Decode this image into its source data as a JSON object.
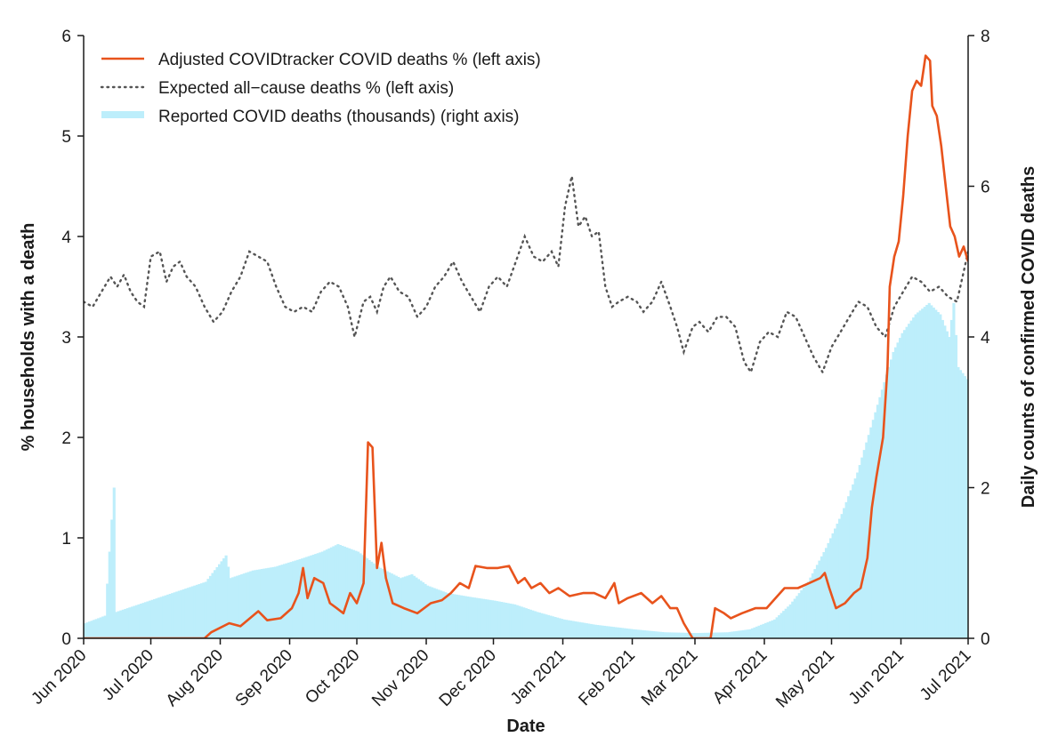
{
  "chart_data": {
    "type": "line",
    "xlabel": "Date",
    "ylabel_left": "% households with a death",
    "ylabel_right": "Daily counts of confirmed COVID deaths",
    "x_range": [
      "2020-06-01",
      "2021-07-01"
    ],
    "x_ticks": [
      "Jun 2020",
      "Jul 2020",
      "Aug 2020",
      "Sep 2020",
      "Oct 2020",
      "Nov 2020",
      "Dec 2020",
      "Jan 2021",
      "Feb 2021",
      "Mar 2021",
      "Apr 2021",
      "May 2021",
      "Jun 2021",
      "Jul 2021"
    ],
    "y_left": {
      "range": [
        0,
        6
      ],
      "ticks": [
        "0",
        "1",
        "2",
        "3",
        "4",
        "5",
        "6"
      ]
    },
    "y_right": {
      "range": [
        0,
        8
      ],
      "ticks": [
        "0",
        "2",
        "4",
        "6",
        "8"
      ]
    },
    "grid": false,
    "legend_position": "top-left",
    "legend": [
      "Adjusted COVIDtracker COVID deaths % (left axis)",
      "Expected all−cause deaths % (left axis)",
      "Reported COVID deaths (thousands) (right axis)"
    ],
    "colors": {
      "adjusted": "#e8531c",
      "expected": "#555555",
      "reported": "#bdeefb",
      "axis": "#1a1a1a"
    },
    "series": [
      {
        "name": "Adjusted COVIDtracker COVID deaths % (left axis)",
        "axis": "left",
        "style": "solid",
        "points": [
          [
            "2020-06-01",
            0.0
          ],
          [
            "2020-07-15",
            0.0
          ],
          [
            "2020-07-25",
            0.0
          ],
          [
            "2020-07-28",
            0.06
          ],
          [
            "2020-08-05",
            0.15
          ],
          [
            "2020-08-10",
            0.12
          ],
          [
            "2020-08-18",
            0.27
          ],
          [
            "2020-08-22",
            0.18
          ],
          [
            "2020-08-28",
            0.2
          ],
          [
            "2020-09-02",
            0.3
          ],
          [
            "2020-09-05",
            0.45
          ],
          [
            "2020-09-07",
            0.7
          ],
          [
            "2020-09-09",
            0.4
          ],
          [
            "2020-09-12",
            0.6
          ],
          [
            "2020-09-16",
            0.55
          ],
          [
            "2020-09-19",
            0.35
          ],
          [
            "2020-09-22",
            0.3
          ],
          [
            "2020-09-25",
            0.25
          ],
          [
            "2020-09-28",
            0.45
          ],
          [
            "2020-10-01",
            0.35
          ],
          [
            "2020-10-04",
            0.55
          ],
          [
            "2020-10-06",
            1.95
          ],
          [
            "2020-10-08",
            1.9
          ],
          [
            "2020-10-10",
            0.7
          ],
          [
            "2020-10-12",
            0.95
          ],
          [
            "2020-10-14",
            0.6
          ],
          [
            "2020-10-17",
            0.35
          ],
          [
            "2020-10-22",
            0.3
          ],
          [
            "2020-10-28",
            0.25
          ],
          [
            "2020-11-03",
            0.35
          ],
          [
            "2020-11-08",
            0.38
          ],
          [
            "2020-11-12",
            0.45
          ],
          [
            "2020-11-16",
            0.55
          ],
          [
            "2020-11-20",
            0.5
          ],
          [
            "2020-11-23",
            0.72
          ],
          [
            "2020-11-28",
            0.7
          ],
          [
            "2020-12-03",
            0.7
          ],
          [
            "2020-12-08",
            0.72
          ],
          [
            "2020-12-12",
            0.55
          ],
          [
            "2020-12-15",
            0.6
          ],
          [
            "2020-12-18",
            0.5
          ],
          [
            "2020-12-22",
            0.55
          ],
          [
            "2020-12-26",
            0.45
          ],
          [
            "2020-12-30",
            0.5
          ],
          [
            "2021-01-04",
            0.42
          ],
          [
            "2021-01-10",
            0.45
          ],
          [
            "2021-01-15",
            0.45
          ],
          [
            "2021-01-20",
            0.4
          ],
          [
            "2021-01-24",
            0.55
          ],
          [
            "2021-01-26",
            0.35
          ],
          [
            "2021-01-30",
            0.4
          ],
          [
            "2021-02-05",
            0.45
          ],
          [
            "2021-02-10",
            0.35
          ],
          [
            "2021-02-14",
            0.42
          ],
          [
            "2021-02-18",
            0.3
          ],
          [
            "2021-02-21",
            0.3
          ],
          [
            "2021-02-24",
            0.15
          ],
          [
            "2021-02-28",
            0.0
          ],
          [
            "2021-03-02",
            0.0
          ],
          [
            "2021-03-08",
            0.0
          ],
          [
            "2021-03-10",
            0.3
          ],
          [
            "2021-03-14",
            0.25
          ],
          [
            "2021-03-17",
            0.2
          ],
          [
            "2021-03-22",
            0.25
          ],
          [
            "2021-03-28",
            0.3
          ],
          [
            "2021-04-02",
            0.3
          ],
          [
            "2021-04-06",
            0.4
          ],
          [
            "2021-04-10",
            0.5
          ],
          [
            "2021-04-16",
            0.5
          ],
          [
            "2021-04-21",
            0.55
          ],
          [
            "2021-04-26",
            0.6
          ],
          [
            "2021-04-28",
            0.65
          ],
          [
            "2021-04-30",
            0.5
          ],
          [
            "2021-05-03",
            0.3
          ],
          [
            "2021-05-07",
            0.35
          ],
          [
            "2021-05-11",
            0.45
          ],
          [
            "2021-05-14",
            0.5
          ],
          [
            "2021-05-17",
            0.8
          ],
          [
            "2021-05-19",
            1.3
          ],
          [
            "2021-05-21",
            1.6
          ],
          [
            "2021-05-24",
            2.0
          ],
          [
            "2021-05-26",
            2.7
          ],
          [
            "2021-05-27",
            3.5
          ],
          [
            "2021-05-29",
            3.8
          ],
          [
            "2021-05-31",
            3.95
          ],
          [
            "2021-06-02",
            4.4
          ],
          [
            "2021-06-04",
            5.0
          ],
          [
            "2021-06-06",
            5.45
          ],
          [
            "2021-06-08",
            5.55
          ],
          [
            "2021-06-10",
            5.5
          ],
          [
            "2021-06-12",
            5.8
          ],
          [
            "2021-06-14",
            5.75
          ],
          [
            "2021-06-15",
            5.3
          ],
          [
            "2021-06-17",
            5.2
          ],
          [
            "2021-06-19",
            4.9
          ],
          [
            "2021-06-21",
            4.5
          ],
          [
            "2021-06-23",
            4.1
          ],
          [
            "2021-06-25",
            4.0
          ],
          [
            "2021-06-27",
            3.8
          ],
          [
            "2021-06-29",
            3.9
          ],
          [
            "2021-07-01",
            3.75
          ]
        ]
      },
      {
        "name": "Expected all−cause deaths % (left axis)",
        "axis": "left",
        "style": "dotted",
        "points": [
          [
            "2020-06-01",
            3.35
          ],
          [
            "2020-06-05",
            3.3
          ],
          [
            "2020-06-09",
            3.45
          ],
          [
            "2020-06-13",
            3.6
          ],
          [
            "2020-06-16",
            3.5
          ],
          [
            "2020-06-19",
            3.62
          ],
          [
            "2020-06-22",
            3.45
          ],
          [
            "2020-06-25",
            3.35
          ],
          [
            "2020-06-28",
            3.3
          ],
          [
            "2020-07-01",
            3.8
          ],
          [
            "2020-07-05",
            3.85
          ],
          [
            "2020-07-08",
            3.55
          ],
          [
            "2020-07-11",
            3.7
          ],
          [
            "2020-07-14",
            3.75
          ],
          [
            "2020-07-17",
            3.6
          ],
          [
            "2020-07-21",
            3.5
          ],
          [
            "2020-07-25",
            3.3
          ],
          [
            "2020-07-29",
            3.15
          ],
          [
            "2020-08-02",
            3.25
          ],
          [
            "2020-08-06",
            3.45
          ],
          [
            "2020-08-10",
            3.6
          ],
          [
            "2020-08-14",
            3.85
          ],
          [
            "2020-08-18",
            3.8
          ],
          [
            "2020-08-22",
            3.75
          ],
          [
            "2020-08-26",
            3.5
          ],
          [
            "2020-08-30",
            3.3
          ],
          [
            "2020-09-03",
            3.25
          ],
          [
            "2020-09-07",
            3.3
          ],
          [
            "2020-09-11",
            3.25
          ],
          [
            "2020-09-15",
            3.45
          ],
          [
            "2020-09-19",
            3.55
          ],
          [
            "2020-09-23",
            3.5
          ],
          [
            "2020-09-27",
            3.3
          ],
          [
            "2020-09-30",
            3.0
          ],
          [
            "2020-10-04",
            3.35
          ],
          [
            "2020-10-07",
            3.4
          ],
          [
            "2020-10-10",
            3.25
          ],
          [
            "2020-10-13",
            3.5
          ],
          [
            "2020-10-16",
            3.6
          ],
          [
            "2020-10-20",
            3.45
          ],
          [
            "2020-10-24",
            3.4
          ],
          [
            "2020-10-28",
            3.2
          ],
          [
            "2020-11-01",
            3.3
          ],
          [
            "2020-11-05",
            3.5
          ],
          [
            "2020-11-09",
            3.6
          ],
          [
            "2020-11-13",
            3.75
          ],
          [
            "2020-11-17",
            3.55
          ],
          [
            "2020-11-21",
            3.4
          ],
          [
            "2020-11-25",
            3.25
          ],
          [
            "2020-11-29",
            3.5
          ],
          [
            "2020-12-03",
            3.6
          ],
          [
            "2020-12-07",
            3.5
          ],
          [
            "2020-12-11",
            3.75
          ],
          [
            "2020-12-15",
            4.0
          ],
          [
            "2020-12-19",
            3.8
          ],
          [
            "2020-12-23",
            3.75
          ],
          [
            "2020-12-27",
            3.85
          ],
          [
            "2020-12-30",
            3.7
          ],
          [
            "2021-01-02",
            4.3
          ],
          [
            "2021-01-05",
            4.6
          ],
          [
            "2021-01-08",
            4.1
          ],
          [
            "2021-01-11",
            4.2
          ],
          [
            "2021-01-14",
            4.0
          ],
          [
            "2021-01-17",
            4.05
          ],
          [
            "2021-01-20",
            3.5
          ],
          [
            "2021-01-23",
            3.3
          ],
          [
            "2021-01-26",
            3.35
          ],
          [
            "2021-01-30",
            3.4
          ],
          [
            "2021-02-03",
            3.35
          ],
          [
            "2021-02-06",
            3.25
          ],
          [
            "2021-02-10",
            3.35
          ],
          [
            "2021-02-14",
            3.55
          ],
          [
            "2021-02-18",
            3.3
          ],
          [
            "2021-02-21",
            3.1
          ],
          [
            "2021-02-24",
            2.85
          ],
          [
            "2021-02-28",
            3.1
          ],
          [
            "2021-03-03",
            3.15
          ],
          [
            "2021-03-07",
            3.05
          ],
          [
            "2021-03-11",
            3.2
          ],
          [
            "2021-03-15",
            3.2
          ],
          [
            "2021-03-19",
            3.1
          ],
          [
            "2021-03-23",
            2.75
          ],
          [
            "2021-03-26",
            2.65
          ],
          [
            "2021-03-30",
            2.95
          ],
          [
            "2021-04-03",
            3.05
          ],
          [
            "2021-04-07",
            3.0
          ],
          [
            "2021-04-11",
            3.25
          ],
          [
            "2021-04-15",
            3.2
          ],
          [
            "2021-04-19",
            3.0
          ],
          [
            "2021-04-23",
            2.8
          ],
          [
            "2021-04-27",
            2.65
          ],
          [
            "2021-05-01",
            2.9
          ],
          [
            "2021-05-05",
            3.05
          ],
          [
            "2021-05-09",
            3.2
          ],
          [
            "2021-05-13",
            3.35
          ],
          [
            "2021-05-17",
            3.3
          ],
          [
            "2021-05-21",
            3.1
          ],
          [
            "2021-05-25",
            3.0
          ],
          [
            "2021-05-29",
            3.3
          ],
          [
            "2021-06-02",
            3.45
          ],
          [
            "2021-06-06",
            3.6
          ],
          [
            "2021-06-10",
            3.55
          ],
          [
            "2021-06-14",
            3.45
          ],
          [
            "2021-06-18",
            3.5
          ],
          [
            "2021-06-22",
            3.4
          ],
          [
            "2021-06-26",
            3.35
          ],
          [
            "2021-06-29",
            3.65
          ],
          [
            "2021-07-01",
            3.85
          ]
        ]
      },
      {
        "name": "Reported COVID deaths (thousands) (right axis)",
        "axis": "right",
        "style": "bars",
        "points": [
          [
            "2020-06-01",
            0.2
          ],
          [
            "2020-06-10",
            0.3
          ],
          [
            "2020-06-14",
            2.0
          ],
          [
            "2020-06-15",
            0.35
          ],
          [
            "2020-06-25",
            0.45
          ],
          [
            "2020-07-05",
            0.55
          ],
          [
            "2020-07-15",
            0.65
          ],
          [
            "2020-07-25",
            0.75
          ],
          [
            "2020-08-03",
            1.1
          ],
          [
            "2020-08-05",
            0.8
          ],
          [
            "2020-08-15",
            0.9
          ],
          [
            "2020-08-25",
            0.95
          ],
          [
            "2020-09-05",
            1.05
          ],
          [
            "2020-09-15",
            1.15
          ],
          [
            "2020-09-22",
            1.25
          ],
          [
            "2020-10-01",
            1.15
          ],
          [
            "2020-10-10",
            0.95
          ],
          [
            "2020-10-20",
            0.8
          ],
          [
            "2020-10-25",
            0.85
          ],
          [
            "2020-11-01",
            0.7
          ],
          [
            "2020-11-10",
            0.6
          ],
          [
            "2020-11-20",
            0.55
          ],
          [
            "2020-12-01",
            0.5
          ],
          [
            "2020-12-10",
            0.45
          ],
          [
            "2020-12-20",
            0.35
          ],
          [
            "2021-01-01",
            0.25
          ],
          [
            "2021-01-15",
            0.18
          ],
          [
            "2021-02-01",
            0.12
          ],
          [
            "2021-02-15",
            0.08
          ],
          [
            "2021-03-01",
            0.07
          ],
          [
            "2021-03-15",
            0.08
          ],
          [
            "2021-03-25",
            0.12
          ],
          [
            "2021-04-05",
            0.25
          ],
          [
            "2021-04-12",
            0.45
          ],
          [
            "2021-04-20",
            0.75
          ],
          [
            "2021-04-28",
            1.2
          ],
          [
            "2021-05-05",
            1.65
          ],
          [
            "2021-05-12",
            2.2
          ],
          [
            "2021-05-18",
            2.8
          ],
          [
            "2021-05-24",
            3.4
          ],
          [
            "2021-05-28",
            3.8
          ],
          [
            "2021-06-01",
            4.05
          ],
          [
            "2021-06-07",
            4.3
          ],
          [
            "2021-06-13",
            4.45
          ],
          [
            "2021-06-18",
            4.3
          ],
          [
            "2021-06-22",
            4.0
          ],
          [
            "2021-06-24",
            4.45
          ],
          [
            "2021-06-26",
            3.6
          ],
          [
            "2021-07-01",
            3.4
          ]
        ]
      }
    ]
  }
}
